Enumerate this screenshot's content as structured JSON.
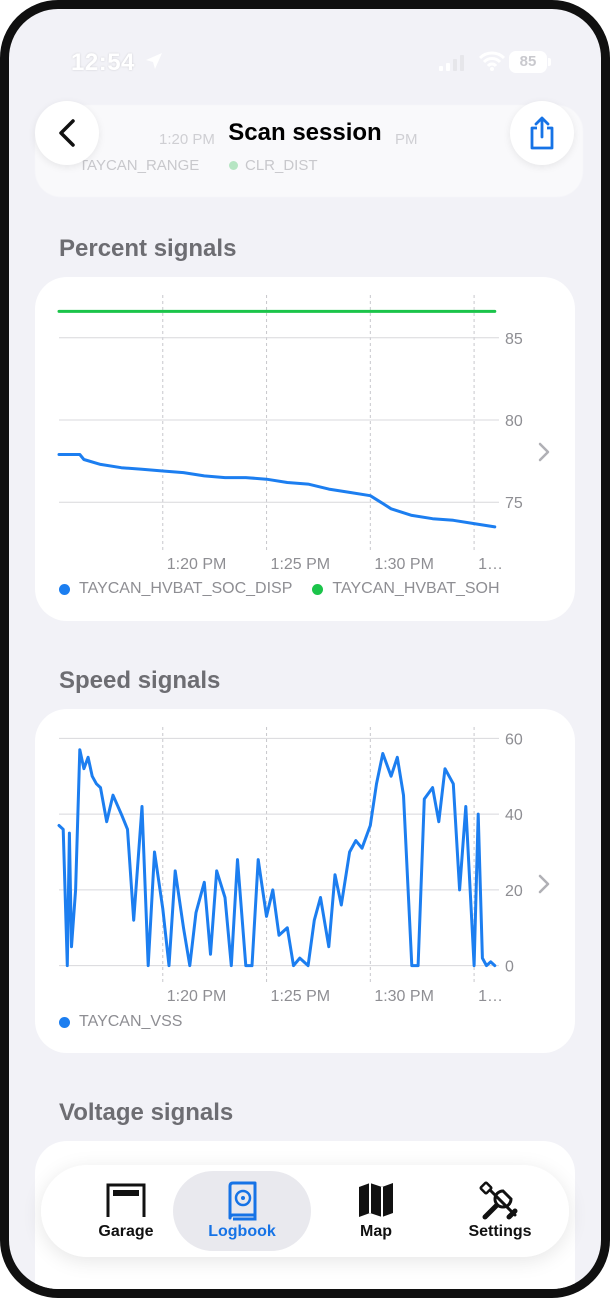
{
  "status_bar": {
    "time": "12:54",
    "battery": "85"
  },
  "header": {
    "title": "Scan session",
    "ghost_time_1": "1:20 PM",
    "ghost_time_2": "PM",
    "ghost_legend_1": "TAYCAN_RANGE",
    "ghost_legend_2": "CLR_DIST"
  },
  "sections": {
    "percent": "Percent signals",
    "speed": "Speed signals",
    "voltage": "Voltage signals"
  },
  "colors": {
    "blue": "#1c7ef0",
    "green": "#1bc44a",
    "accent": "#1673e6"
  },
  "chart_data": [
    {
      "type": "line",
      "title": "Percent signals",
      "x_tick_labels": [
        "1:20 PM",
        "1:25 PM",
        "1:30 PM",
        "1…"
      ],
      "y_tick_labels": [
        "75",
        "80",
        "85"
      ],
      "ylim": [
        72.4,
        87.6
      ],
      "x_minutes_range": [
        16,
        37.2
      ],
      "x_ticks_minutes": [
        21,
        26,
        31,
        36
      ],
      "grid": true,
      "legend": "bottom",
      "series": [
        {
          "name": "TAYCAN_HVBAT_SOC_DISP",
          "color": "#1c7ef0",
          "x": [
            16,
            17,
            17.2,
            18,
            19,
            20,
            21,
            22,
            23,
            24,
            25,
            26,
            27,
            28,
            29,
            30,
            31,
            31.5,
            32,
            33,
            34,
            35,
            36,
            37
          ],
          "y": [
            77.9,
            77.9,
            77.6,
            77.3,
            77.1,
            77.0,
            76.9,
            76.8,
            76.6,
            76.5,
            76.5,
            76.4,
            76.2,
            76.1,
            75.8,
            75.6,
            75.4,
            75.0,
            74.6,
            74.2,
            74.0,
            73.9,
            73.7,
            73.5
          ]
        },
        {
          "name": "TAYCAN_HVBAT_SOH",
          "color": "#1bc44a",
          "x": [
            16,
            37
          ],
          "y": [
            86.6,
            86.6
          ]
        }
      ]
    },
    {
      "type": "line",
      "title": "Speed signals",
      "x_tick_labels": [
        "1:20 PM",
        "1:25 PM",
        "1:30 PM",
        "1…"
      ],
      "y_tick_labels": [
        "0",
        "20",
        "40",
        "60"
      ],
      "ylim": [
        -3,
        63
      ],
      "x_minutes_range": [
        16,
        37.2
      ],
      "x_ticks_minutes": [
        21,
        26,
        31,
        36
      ],
      "grid": true,
      "legend": "bottom",
      "series": [
        {
          "name": "TAYCAN_VSS",
          "color": "#1c7ef0",
          "x": [
            16,
            16.2,
            16.4,
            16.5,
            16.6,
            16.8,
            17,
            17.2,
            17.4,
            17.6,
            17.8,
            18,
            18.3,
            18.6,
            19,
            19.3,
            19.6,
            20,
            20.3,
            20.6,
            21,
            21.3,
            21.6,
            22,
            22.3,
            22.6,
            23,
            23.3,
            23.6,
            24,
            24.3,
            24.6,
            25,
            25.3,
            25.6,
            26,
            26.3,
            26.6,
            27,
            27.3,
            27.6,
            28,
            28.3,
            28.6,
            29,
            29.3,
            29.6,
            30,
            30.3,
            30.6,
            31,
            31.3,
            31.6,
            32,
            32.3,
            32.6,
            33,
            33.3,
            33.6,
            34,
            34.3,
            34.6,
            35,
            35.3,
            35.6,
            36,
            36.2,
            36.4,
            36.6,
            36.8,
            37
          ],
          "y": [
            37,
            36,
            0,
            35,
            5,
            20,
            57,
            52,
            55,
            50,
            48,
            47,
            38,
            45,
            40,
            36,
            12,
            42,
            0,
            30,
            15,
            0,
            25,
            10,
            0,
            14,
            22,
            3,
            25,
            18,
            0,
            28,
            0,
            0,
            28,
            13,
            20,
            8,
            10,
            0,
            2,
            0,
            12,
            18,
            5,
            24,
            16,
            30,
            33,
            31,
            37,
            48,
            56,
            50,
            55,
            45,
            0,
            0,
            44,
            47,
            38,
            52,
            48,
            20,
            42,
            0,
            40,
            2,
            0,
            1,
            0
          ]
        }
      ]
    }
  ],
  "tabs": [
    {
      "label": "Garage"
    },
    {
      "label": "Logbook"
    },
    {
      "label": "Map"
    },
    {
      "label": "Settings"
    }
  ]
}
